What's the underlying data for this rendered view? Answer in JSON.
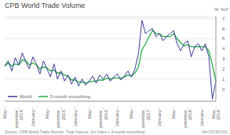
{
  "chart_data": {
    "type": "line",
    "title": "CPB World Trade Volume",
    "y_label": "% YoY",
    "annotations": [
      "Source: CPB World Trade Monitor, Total Volume, 3m Index + 3-month smoothing",
      "MACROBOND"
    ],
    "categories": [
      "May",
      null,
      null,
      null,
      "September\n2014",
      null,
      null,
      null,
      "January",
      null,
      null,
      null,
      "May",
      null,
      null,
      null,
      "September\n2015",
      null,
      null,
      null,
      "January",
      null,
      null,
      null,
      "May",
      null,
      null,
      null,
      "September\n2016",
      null,
      null,
      null,
      "January",
      null,
      null,
      null,
      "May",
      null,
      null,
      null,
      "September\n2017",
      null,
      null,
      null,
      "January",
      null,
      null,
      null,
      "May",
      null,
      null,
      null,
      "September\n2018",
      null,
      null,
      null,
      "January",
      null,
      null,
      null,
      "May\n2019"
    ],
    "series": [
      {
        "name": "World",
        "color": "#3a3a9a",
        "values": [
          2.3,
          2.8,
          1.8,
          3.1,
          2.4,
          3.6,
          2.7,
          2.0,
          3.2,
          2.5,
          1.5,
          2.8,
          2.0,
          1.2,
          2.5,
          1.0,
          1.8,
          0.8,
          1.4,
          0.5,
          1.2,
          0.3,
          1.0,
          0.4,
          0.8,
          1.3,
          0.6,
          1.4,
          1.0,
          1.5,
          0.8,
          1.2,
          1.5,
          0.9,
          1.3,
          1.8,
          1.2,
          2.0,
          3.5,
          6.8,
          5.5,
          5.8,
          6.0,
          5.2,
          5.5,
          4.8,
          5.2,
          5.5,
          5.8,
          4.5,
          3.8,
          4.5,
          4.8,
          3.2,
          4.2,
          4.5,
          3.8,
          4.5,
          3.2,
          -1.0,
          0.8
        ]
      },
      {
        "name": "3-month smoothing",
        "color": "#22aa44",
        "values": [
          2.3,
          2.6,
          2.3,
          2.5,
          2.4,
          2.9,
          2.8,
          2.4,
          2.6,
          2.4,
          2.0,
          2.2,
          2.1,
          1.8,
          1.9,
          1.6,
          1.6,
          1.4,
          1.3,
          0.9,
          0.9,
          0.7,
          0.7,
          0.6,
          0.7,
          0.8,
          0.8,
          0.9,
          0.9,
          1.1,
          1.0,
          1.1,
          1.1,
          1.1,
          1.2,
          1.4,
          1.3,
          1.6,
          2.2,
          3.9,
          4.5,
          5.2,
          5.8,
          5.5,
          5.5,
          5.2,
          5.2,
          5.2,
          5.5,
          5.0,
          4.6,
          4.3,
          4.4,
          4.2,
          4.2,
          4.2,
          4.2,
          4.2,
          3.8,
          2.4,
          0.8
        ]
      }
    ],
    "ylim": [
      -1.2,
      7.2
    ],
    "yticks": [
      0,
      1,
      2,
      3,
      4,
      5,
      6,
      7
    ],
    "grid": true,
    "legend": "lower left"
  }
}
